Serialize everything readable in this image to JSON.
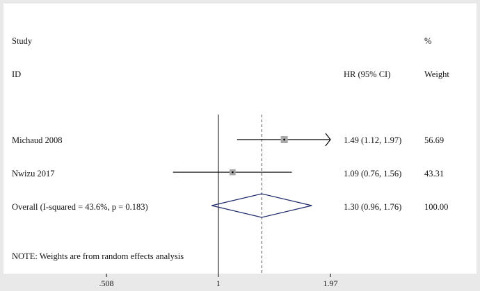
{
  "header": {
    "study": "Study",
    "id": "ID",
    "pct": "%",
    "hr": "HR (95% CI)",
    "weight": "Weight"
  },
  "rows": [
    {
      "label": "Michaud 2008",
      "ci_text": "1.49 (1.12, 1.97)",
      "weight_text": "56.69"
    },
    {
      "label": "Nwizu 2017",
      "ci_text": "1.09 (0.76, 1.56)",
      "weight_text": "43.31"
    }
  ],
  "overall": {
    "label": "Overall  (I-squared = 43.6%, p = 0.183)",
    "ci_text": "1.30 (0.96, 1.76)",
    "weight_text": "100.00"
  },
  "note": "NOTE: Weights are from random effects analysis",
  "chart_data": {
    "type": "forest",
    "scale": "log",
    "xlim": [
      0.508,
      1.97
    ],
    "null_line": 1,
    "ticks": [
      {
        "value": 0.508,
        "label": ".508"
      },
      {
        "value": 1,
        "label": "1"
      },
      {
        "value": 1.97,
        "label": "1.97"
      }
    ],
    "studies": [
      {
        "name": "Michaud 2008",
        "hr": 1.49,
        "lower": 1.12,
        "upper": 1.97,
        "weight": 56.69,
        "arrow_right": true
      },
      {
        "name": "Nwizu 2017",
        "hr": 1.09,
        "lower": 0.76,
        "upper": 1.56,
        "weight": 43.31,
        "arrow_right": false
      }
    ],
    "overall": {
      "hr": 1.3,
      "lower": 0.96,
      "upper": 1.76
    },
    "colors": {
      "box": "#a8a8a8",
      "diamond": "#1f2a6b",
      "line": "#000000",
      "dashed": "#555555"
    }
  }
}
